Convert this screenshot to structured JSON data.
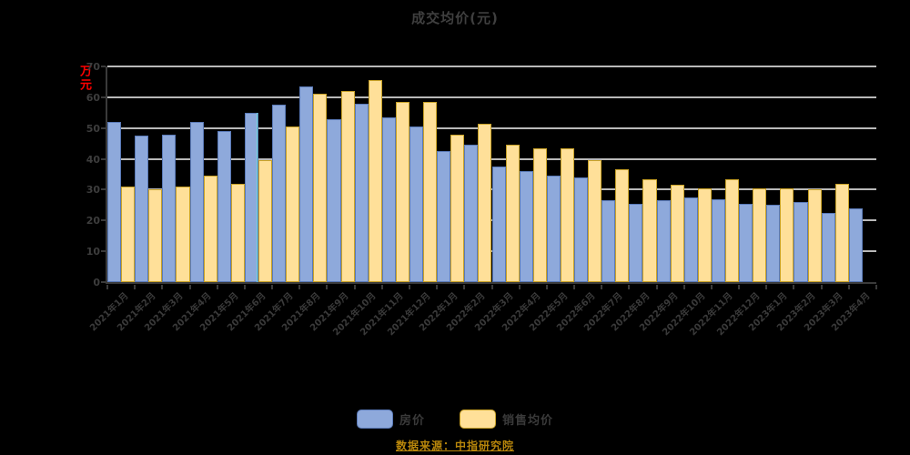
{
  "title": "成交均价(元)",
  "y_axis_title": "万元",
  "source_note": "数据来源：中指研究院",
  "legend": {
    "items": [
      {
        "label": "房价",
        "color": "#8EA9DB",
        "border": "#5A7AB8"
      },
      {
        "label": "销售均价",
        "color": "#FFE099",
        "border": "#C9A227"
      }
    ]
  },
  "colors": {
    "background": "#000000",
    "gridline": "#d9d9d9",
    "axis": "#3a3a3a",
    "text": "#3f3f3f",
    "y_axis_title": "#ff0000",
    "source_note": "#b8860b",
    "series_blue": "#8EA9DB",
    "series_tan": "#FFE099"
  },
  "chart_data": {
    "type": "bar",
    "title": "成交均价(元)",
    "xlabel": "",
    "ylabel": "万元",
    "ylim": [
      0,
      70
    ],
    "yticks": [
      0,
      10,
      20,
      30,
      40,
      50,
      60,
      70
    ],
    "grid": true,
    "legend_position": "bottom",
    "x_label_rotation_deg": 45,
    "categories": [
      "2021年1月",
      "2021年2月",
      "2021年3月",
      "2021年4月",
      "2021年5月",
      "2021年6月",
      "2021年7月",
      "2021年8月",
      "2021年9月",
      "2021年10月",
      "2021年11月",
      "2021年12月",
      "2022年1月",
      "2022年2月",
      "2022年3月",
      "2022年4月",
      "2022年5月",
      "2022年6月",
      "2022年7月",
      "2022年8月",
      "2022年9月",
      "2022年10月",
      "2022年11月",
      "2022年12月",
      "2023年1月",
      "2023年2月",
      "2023年3月",
      "2023年4月"
    ],
    "series": [
      {
        "name": "房价",
        "color": "#8EA9DB",
        "border": "#5A7AB8",
        "values": [
          52,
          47.5,
          48,
          52,
          49,
          55,
          57.5,
          63.5,
          53,
          58,
          53.5,
          50.5,
          42.5,
          44.5,
          37.5,
          36,
          34.5,
          34,
          26.5,
          25.5,
          26.5,
          27.5,
          27,
          25.5,
          25,
          26,
          22.5,
          24
        ]
      },
      {
        "name": "销售均价",
        "color": "#FFE099",
        "border": "#C9A227",
        "values": [
          31,
          30,
          31,
          34.5,
          32,
          39.5,
          50.5,
          61,
          62,
          65.5,
          58.5,
          58.5,
          48,
          51.5,
          44.5,
          43.5,
          43.5,
          39.5,
          36.5,
          33.5,
          31.5,
          30.5,
          33.5,
          30.5,
          30.5,
          30,
          32,
          null
        ]
      }
    ]
  }
}
